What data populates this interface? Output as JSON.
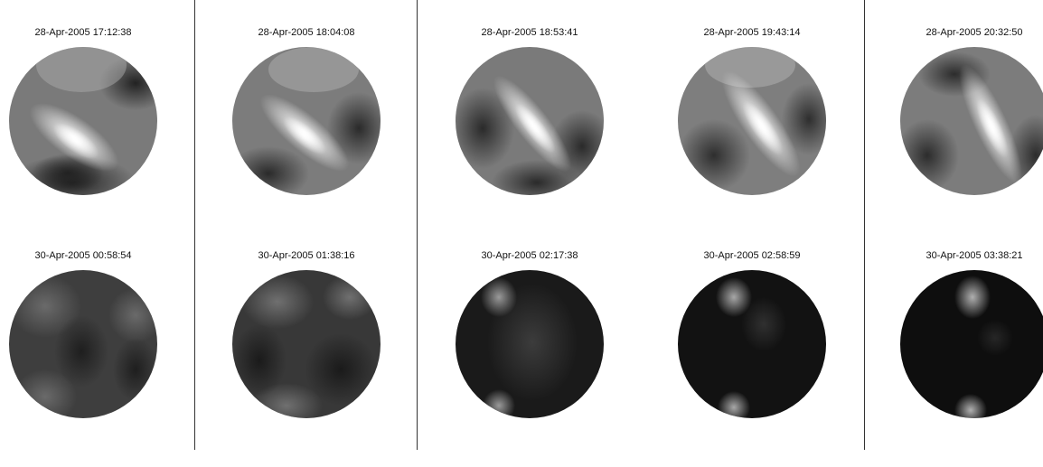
{
  "row1": [
    {
      "timestamp": "28-Apr-2005 17:12:38",
      "scene": "bright-band"
    },
    {
      "timestamp": "28-Apr-2005 18:04:08",
      "scene": "bright-band"
    },
    {
      "timestamp": "28-Apr-2005 18:53:41",
      "scene": "bright-band"
    },
    {
      "timestamp": "28-Apr-2005 19:43:14",
      "scene": "bright-band"
    },
    {
      "timestamp": "28-Apr-2005 20:32:50",
      "scene": "bright-band"
    }
  ],
  "row2": [
    {
      "timestamp": "30-Apr-2005 00:58:54",
      "scene": "dim-gray"
    },
    {
      "timestamp": "30-Apr-2005 01:38:16",
      "scene": "dim-gray"
    },
    {
      "timestamp": "30-Apr-2005 02:17:38",
      "scene": "dark-spots"
    },
    {
      "timestamp": "30-Apr-2005 02:58:59",
      "scene": "dark-spots"
    },
    {
      "timestamp": "30-Apr-2005 03:38:21",
      "scene": "dark-spots"
    }
  ]
}
